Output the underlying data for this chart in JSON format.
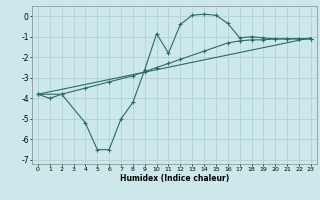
{
  "xlabel": "Humidex (Indice chaleur)",
  "bg_color": "#cce8ea",
  "grid_color": "#aacfd2",
  "line_color": "#2a6b65",
  "xlim": [
    -0.5,
    23.5
  ],
  "ylim": [
    -7.2,
    0.5
  ],
  "xticks": [
    0,
    1,
    2,
    3,
    4,
    5,
    6,
    7,
    8,
    9,
    10,
    11,
    12,
    13,
    14,
    15,
    16,
    17,
    18,
    19,
    20,
    21,
    22,
    23
  ],
  "yticks": [
    0,
    -1,
    -2,
    -3,
    -4,
    -5,
    -6,
    -7
  ],
  "line1_x": [
    0,
    1,
    2,
    4,
    5,
    6,
    7,
    8,
    9,
    10,
    11,
    12,
    13,
    14,
    15,
    16,
    17,
    18,
    19,
    20,
    21,
    22,
    23
  ],
  "line1_y": [
    -3.8,
    -4.0,
    -3.8,
    -5.2,
    -6.5,
    -6.5,
    -5.0,
    -4.2,
    -2.6,
    -0.85,
    -1.8,
    -0.4,
    0.05,
    0.1,
    0.05,
    -0.35,
    -1.05,
    -1.0,
    -1.05,
    -1.1,
    -1.1,
    -1.1,
    -1.1
  ],
  "line2_x": [
    0,
    2,
    4,
    6,
    8,
    9,
    10,
    11,
    12,
    14,
    16,
    17,
    18,
    19,
    20,
    21,
    22,
    23
  ],
  "line2_y": [
    -3.8,
    -3.8,
    -3.5,
    -3.2,
    -2.9,
    -2.7,
    -2.5,
    -2.3,
    -2.1,
    -1.7,
    -1.3,
    -1.2,
    -1.15,
    -1.15,
    -1.1,
    -1.1,
    -1.1,
    -1.1
  ],
  "line3_x": [
    0,
    23
  ],
  "line3_y": [
    -3.8,
    -1.05
  ]
}
